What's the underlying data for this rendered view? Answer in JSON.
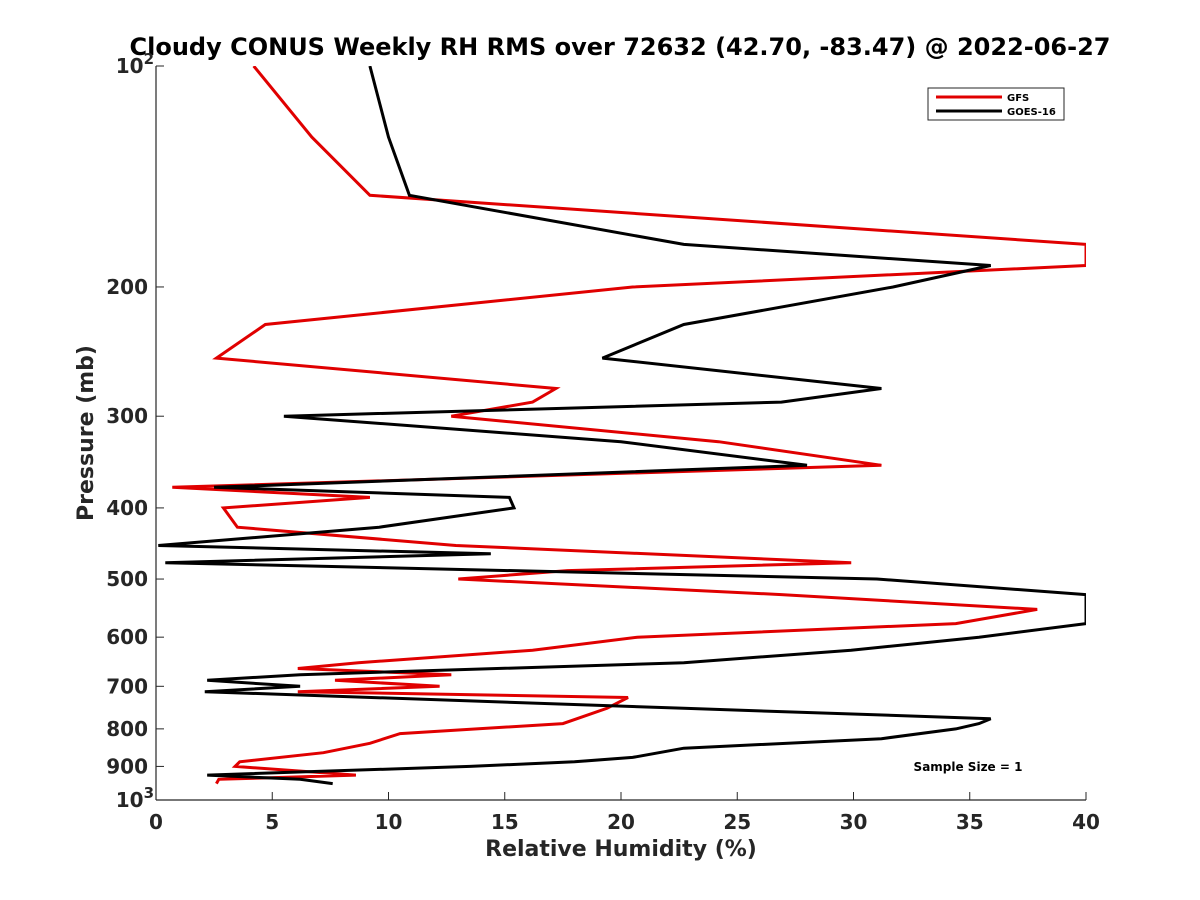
{
  "chart_data": {
    "type": "line",
    "title": "Cloudy CONUS Weekly RH RMS over 72632 (42.70, -83.47) @ 2022-06-27",
    "xlabel": "Relative Humidity (%)",
    "ylabel": "Pressure (mb)",
    "xlim": [
      0,
      40
    ],
    "ylim": [
      100,
      1000
    ],
    "y_scale": "log",
    "y_reversed": true,
    "grid": false,
    "legend_position": "top-right",
    "x_ticks": [
      0,
      5,
      10,
      15,
      20,
      25,
      30,
      35,
      40
    ],
    "y_ticks": [
      {
        "value": 100,
        "label": "10",
        "sup": "2"
      },
      {
        "value": 200,
        "label": "200"
      },
      {
        "value": 300,
        "label": "300"
      },
      {
        "value": 400,
        "label": "400"
      },
      {
        "value": 500,
        "label": "500"
      },
      {
        "value": 600,
        "label": "600"
      },
      {
        "value": 700,
        "label": "700"
      },
      {
        "value": 800,
        "label": "800"
      },
      {
        "value": 900,
        "label": "900"
      },
      {
        "value": 1000,
        "label": "10",
        "sup": "3"
      }
    ],
    "annotation": "Sample Size = 1",
    "series": [
      {
        "name": "GFS",
        "color": "#e00000",
        "points": [
          [
            4.2,
            100
          ],
          [
            6.7,
            125
          ],
          [
            9.2,
            150
          ],
          [
            40,
            175
          ],
          [
            40,
            187
          ],
          [
            20.5,
            200
          ],
          [
            4.7,
            225
          ],
          [
            2.6,
            250
          ],
          [
            17.2,
            275
          ],
          [
            16.2,
            287
          ],
          [
            12.7,
            300
          ],
          [
            24.2,
            325
          ],
          [
            31.2,
            350
          ],
          [
            0.7,
            375
          ],
          [
            9.2,
            387
          ],
          [
            2.9,
            400
          ],
          [
            3.5,
            425
          ],
          [
            12.9,
            450
          ],
          [
            29.9,
            475
          ],
          [
            17.7,
            487
          ],
          [
            13.0,
            500
          ],
          [
            26.9,
            525
          ],
          [
            37.9,
            550
          ],
          [
            34.4,
            575
          ],
          [
            20.7,
            600
          ],
          [
            16.2,
            625
          ],
          [
            8.7,
            650
          ],
          [
            6.1,
            662
          ],
          [
            12.7,
            675
          ],
          [
            7.7,
            687
          ],
          [
            12.2,
            700
          ],
          [
            6.1,
            712
          ],
          [
            20.3,
            725
          ],
          [
            19.4,
            750
          ],
          [
            17.5,
            787
          ],
          [
            10.5,
            812
          ],
          [
            9.2,
            837
          ],
          [
            7.2,
            862
          ],
          [
            3.6,
            887
          ],
          [
            3.4,
            900
          ],
          [
            8.6,
            925
          ],
          [
            2.7,
            937
          ],
          [
            2.6,
            950
          ]
        ]
      },
      {
        "name": "GOES-16",
        "color": "#000000",
        "points": [
          [
            9.2,
            100
          ],
          [
            10.0,
            125
          ],
          [
            10.9,
            150
          ],
          [
            22.7,
            175
          ],
          [
            35.9,
            187
          ],
          [
            31.7,
            200
          ],
          [
            22.7,
            225
          ],
          [
            19.2,
            250
          ],
          [
            31.2,
            275
          ],
          [
            26.9,
            287
          ],
          [
            5.5,
            300
          ],
          [
            20.0,
            325
          ],
          [
            28.0,
            350
          ],
          [
            2.5,
            375
          ],
          [
            15.2,
            387
          ],
          [
            15.4,
            400
          ],
          [
            9.6,
            425
          ],
          [
            0.1,
            450
          ],
          [
            14.4,
            462
          ],
          [
            0.4,
            475
          ],
          [
            31.0,
            500
          ],
          [
            40,
            525
          ],
          [
            40,
            575
          ],
          [
            35.4,
            600
          ],
          [
            29.9,
            625
          ],
          [
            22.7,
            650
          ],
          [
            6.2,
            675
          ],
          [
            2.2,
            687
          ],
          [
            6.2,
            700
          ],
          [
            2.1,
            712
          ],
          [
            22.7,
            750
          ],
          [
            35.9,
            775
          ],
          [
            35.4,
            787
          ],
          [
            34.4,
            800
          ],
          [
            31.2,
            825
          ],
          [
            22.7,
            850
          ],
          [
            20.5,
            875
          ],
          [
            18.0,
            887
          ],
          [
            13.5,
            900
          ],
          [
            2.2,
            925
          ],
          [
            6.2,
            937
          ],
          [
            7.6,
            950
          ]
        ]
      }
    ]
  }
}
